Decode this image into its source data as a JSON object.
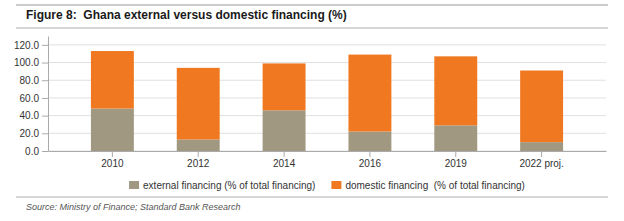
{
  "chart_data": {
    "type": "bar",
    "stacked": true,
    "title": "Figure 8:  Ghana external versus domestic financing (%)",
    "annotations": [
      "Source: Ministry of Finance; Standard Bank Research"
    ],
    "categories": [
      "2010",
      "2012",
      "2014",
      "2016",
      "2019",
      "2022 proj."
    ],
    "series": [
      {
        "name": "external financing (% of total financing)",
        "color": "#a09880",
        "values": [
          48.0,
          13.0,
          46.0,
          22.0,
          29.0,
          10.0
        ]
      },
      {
        "name": "domestic financing  (% of total financing)",
        "color": "#f07820",
        "values": [
          65.0,
          81.0,
          53.0,
          87.0,
          78.0,
          81.0
        ]
      }
    ],
    "ylim": [
      0,
      130
    ],
    "yticks": [
      {
        "value": 0,
        "label": "0.0"
      },
      {
        "value": 20,
        "label": "20.0"
      },
      {
        "value": 40,
        "label": "40.0"
      },
      {
        "value": 60,
        "label": "60.0"
      },
      {
        "value": 80,
        "label": "80.0"
      },
      {
        "value": 100,
        "label": "100.0"
      },
      {
        "value": 120,
        "label": "120.0"
      }
    ],
    "grid": true,
    "legend": "bottom"
  }
}
